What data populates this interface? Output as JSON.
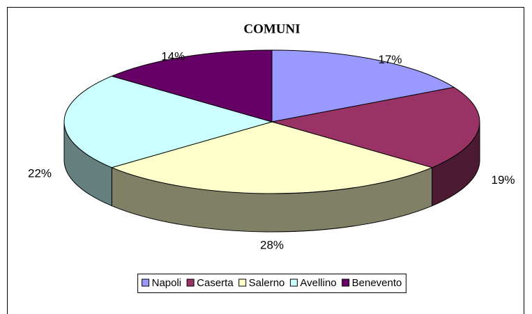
{
  "chart_data": {
    "type": "pie",
    "title": "COMUNI",
    "categories": [
      "Napoli",
      "Caserta",
      "Salerno",
      "Avellino",
      "Benevento"
    ],
    "values": [
      17,
      19,
      28,
      22,
      14
    ],
    "value_labels": [
      "17%",
      "19%",
      "28%",
      "22%",
      "14%"
    ],
    "colors": [
      "#9999ff",
      "#993366",
      "#ffffcc",
      "#ccffff",
      "#660066"
    ],
    "legend": "bottom"
  }
}
